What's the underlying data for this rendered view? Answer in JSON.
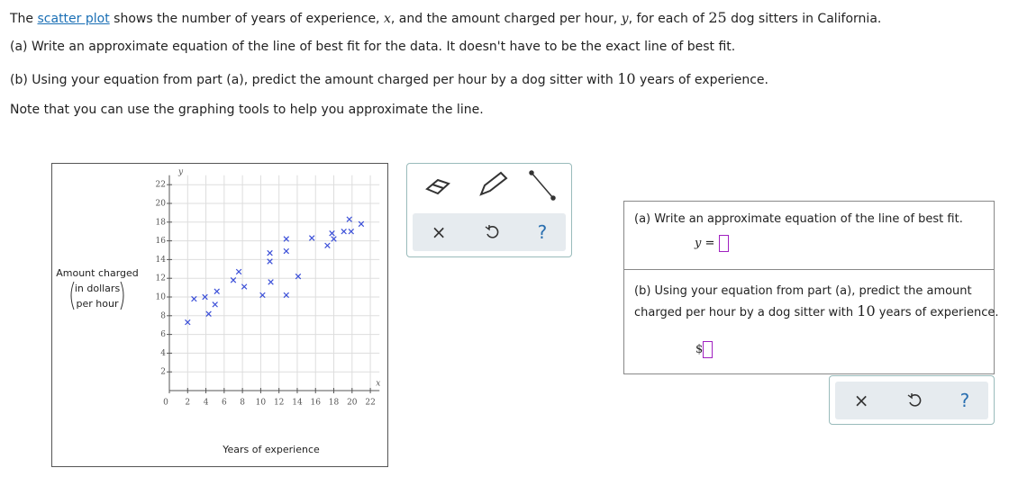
{
  "question": {
    "intro": [
      "The ",
      "scatter plot",
      " shows the number of years of experience, ",
      "x",
      ", and the amount charged per hour, ",
      "y",
      ", for each of ",
      "25",
      " dog sitters in California."
    ],
    "part_a": "(a) Write an approximate equation of the line of best fit for the data. It doesn't have to be the exact line of best fit.",
    "part_b": [
      "(b) Using your equation from part (a), predict the amount charged per hour by a dog sitter with ",
      "10",
      " years of experience."
    ],
    "note": "Note that you can use the graphing tools to help you approximate the line."
  },
  "answer_panel": {
    "part_a": "(a) Write an approximate equation of the line of best fit.",
    "y_var": "y",
    "equals": "=",
    "part_b": [
      "(b) Using your equation from part (a), predict the amount",
      "charged per hour by a dog sitter with ",
      "10",
      " years of experience."
    ],
    "currency": "$"
  },
  "buttons": {
    "clear": "×",
    "help": "?"
  },
  "chart_data": {
    "type": "scatter",
    "x_axis_label": "x",
    "y_axis_label": "y",
    "xlabel": "Years of experience",
    "ylabel": [
      "Amount charged",
      "in dollars",
      "per hour"
    ],
    "xlim": [
      0,
      23
    ],
    "ylim": [
      0,
      23
    ],
    "xticks": [
      0,
      2,
      4,
      6,
      8,
      10,
      12,
      14,
      16,
      18,
      20,
      22
    ],
    "yticks": [
      2,
      4,
      6,
      8,
      10,
      12,
      14,
      16,
      18,
      20,
      22
    ],
    "grid": true,
    "color": "#3b4fd8",
    "x": [
      2,
      2.7,
      3.9,
      4.3,
      5,
      5.2,
      7,
      7.6,
      8.2,
      10.2,
      11,
      11,
      11.1,
      12.8,
      12.8,
      12.8,
      14.1,
      15.6,
      17.3,
      17.8,
      18,
      19.1,
      19.7,
      19.9,
      21
    ],
    "values": [
      7.3,
      9.8,
      10,
      8.2,
      9.2,
      10.6,
      11.8,
      12.7,
      11.1,
      10.2,
      14.7,
      13.8,
      11.6,
      16.2,
      14.9,
      10.2,
      12.2,
      16.3,
      15.5,
      16.8,
      16.2,
      17,
      18.3,
      17,
      17.8
    ]
  }
}
